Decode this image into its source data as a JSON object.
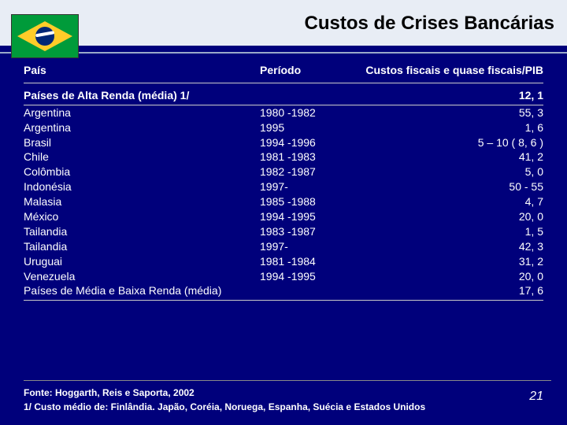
{
  "title": "Custos de Crises Bancárias",
  "columns": {
    "pais": "País",
    "periodo": "Período",
    "custos": "Custos fiscais e quase fiscais/PIB"
  },
  "subheader": {
    "label": "Países de Alta Renda (média) 1/",
    "value": "12, 1"
  },
  "rows": [
    {
      "pais": "Argentina",
      "periodo": "1980 -1982",
      "custo": "55, 3"
    },
    {
      "pais": "Argentina",
      "periodo": "1995",
      "custo": "1, 6"
    },
    {
      "pais": "Brasil",
      "periodo": "1994 -1996",
      "custo": "5 – 10 ( 8, 6 )"
    },
    {
      "pais": "Chile",
      "periodo": "1981 -1983",
      "custo": "41, 2"
    },
    {
      "pais": "Colômbia",
      "periodo": "1982 -1987",
      "custo": "5, 0"
    },
    {
      "pais": "Indonésia",
      "periodo": "1997-",
      "custo": "50 - 55"
    },
    {
      "pais": "Malasia",
      "periodo": "1985 -1988",
      "custo": "4, 7"
    },
    {
      "pais": "México",
      "periodo": "1994 -1995",
      "custo": "20, 0"
    },
    {
      "pais": "Tailandia",
      "periodo": "1983 -1987",
      "custo": "1, 5"
    },
    {
      "pais": "Tailandia",
      "periodo": "1997-",
      "custo": "42, 3"
    },
    {
      "pais": "Uruguai",
      "periodo": "1981 -1984",
      "custo": "31, 2"
    },
    {
      "pais": "Venezuela",
      "periodo": "1994 -1995",
      "custo": "20, 0"
    },
    {
      "pais": "Países de Média e Baixa Renda (média)",
      "periodo": "",
      "custo": "17, 6"
    }
  ],
  "footer": {
    "line1": "Fonte: Hoggarth, Reis e Saporta, 2002",
    "line2": "1/ Custo médio de: Finlândia. Japão, Coréia, Noruega, Espanha, Suécia e Estados Unidos"
  },
  "page_number": "21"
}
